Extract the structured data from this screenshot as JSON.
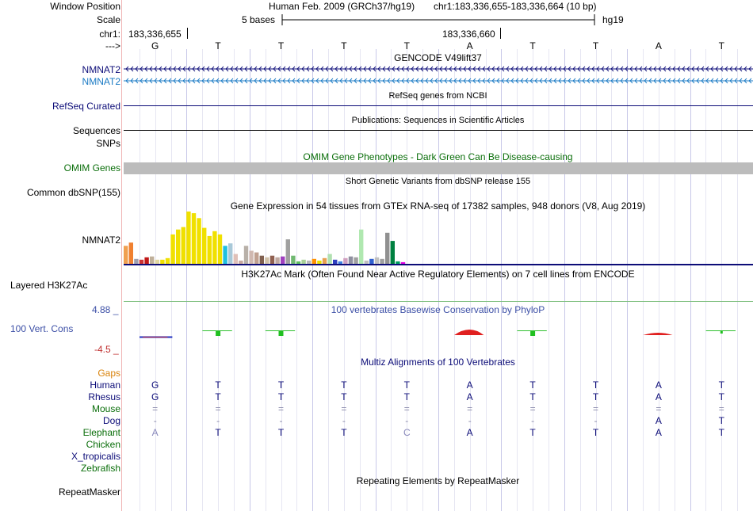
{
  "header": {
    "window_position_label": "Window Position",
    "scale_label": "Scale",
    "chrom_label": "chr1:",
    "strand_label": "--->",
    "assembly": "Human Feb. 2009 (GRCh37/hg19)",
    "position": "chr1:183,336,655-183,336,664 (10 bp)",
    "scale_text": "5 bases",
    "db": "hg19",
    "coord_left": "183,336,655",
    "coord_mid": "183,336,660",
    "bases": [
      "G",
      "T",
      "T",
      "T",
      "T",
      "A",
      "T",
      "T",
      "A",
      "T"
    ]
  },
  "tracks": {
    "gencode": {
      "title": "GENCODE V49lift37",
      "labels": [
        "NMNAT2",
        "NMNAT2"
      ]
    },
    "refseq": {
      "title": "RefSeq genes from NCBI",
      "label": "RefSeq Curated"
    },
    "publications": {
      "title": "Publications: Sequences in Scientific Articles",
      "label": "Sequences"
    },
    "snps": {
      "label": "SNPs"
    },
    "omim": {
      "title": "OMIM Gene Phenotypes - Dark Green Can Be Disease-causing",
      "label": "OMIM Genes"
    },
    "dbsnp": {
      "title": "Short Genetic Variants from dbSNP release 155",
      "label": "Common dbSNP(155)"
    },
    "gtex": {
      "title": "Gene Expression in 54 tissues from GTEx RNA-seq of 17382 samples, 948 donors (V8, Aug 2019)",
      "label": "NMNAT2"
    },
    "h3k27ac": {
      "title": "H3K27Ac Mark (Often Found Near Active Regulatory Elements) on 7 cell lines from ENCODE",
      "label": "Layered H3K27Ac"
    },
    "phylop": {
      "title": "100 vertebrates Basewise Conservation by PhyloP",
      "label": "100 Vert. Cons",
      "max": "4.88 _",
      "min": "-4.5 _"
    },
    "multiz": {
      "title": "Multiz Alignments of 100 Vertebrates",
      "gaps_label": "Gaps",
      "species": [
        {
          "name": "Human",
          "bases": [
            "G",
            "T",
            "T",
            "T",
            "T",
            "A",
            "T",
            "T",
            "A",
            "T"
          ]
        },
        {
          "name": "Rhesus",
          "bases": [
            "G",
            "T",
            "T",
            "T",
            "T",
            "A",
            "T",
            "T",
            "A",
            "T"
          ]
        },
        {
          "name": "Mouse",
          "bases": [
            "=",
            "=",
            "=",
            "=",
            "=",
            "=",
            "=",
            "=",
            "=",
            "="
          ]
        },
        {
          "name": "Dog",
          "bases": [
            "-",
            "-",
            "-",
            "-",
            "-",
            "-",
            "-",
            "-",
            "A",
            "T"
          ]
        },
        {
          "name": "Elephant",
          "bases": [
            "A",
            "T",
            "T",
            "T",
            "C",
            "A",
            "T",
            "T",
            "A",
            "T"
          ]
        },
        {
          "name": "Chicken",
          "bases": []
        },
        {
          "name": "X_tropicalis",
          "bases": []
        },
        {
          "name": "Zebrafish",
          "bases": []
        }
      ]
    },
    "repeatmasker": {
      "title": "Repeating Elements by RepeatMasker",
      "label": "RepeatMasker"
    }
  },
  "chart_data": {
    "type": "bar",
    "title": "Gene Expression in 54 tissues from GTEx RNA-seq of 17382 samples, 948 donors (V8, Aug 2019)",
    "xlabel": "",
    "ylabel": "",
    "ylim": [
      0,
      64
    ],
    "values": [
      22,
      26,
      6,
      5,
      8,
      9,
      5,
      5,
      7,
      36,
      42,
      45,
      64,
      62,
      56,
      44,
      34,
      40,
      36,
      22,
      25,
      12,
      4,
      22,
      16,
      14,
      10,
      8,
      10,
      8,
      9,
      30,
      10,
      3,
      5,
      4,
      6,
      4,
      7,
      12,
      5,
      3,
      7,
      9,
      8,
      42,
      4,
      6,
      8,
      6,
      38,
      28,
      3,
      2
    ],
    "colors": [
      "#f0a050",
      "#f08030",
      "#a0a0b0",
      "#cc3333",
      "#c01818",
      "#c0b09a",
      "#e0d6a0",
      "#f0e000",
      "#f0e000",
      "#f0e000",
      "#f0e000",
      "#f0e000",
      "#f0e000",
      "#f0e000",
      "#f0e000",
      "#f0e000",
      "#f0e000",
      "#f0e000",
      "#f0e000",
      "#20c0e0",
      "#a8c8d8",
      "#e0c0b8",
      "#c8a8a0",
      "#b8b0a8",
      "#d0b8b0",
      "#c0a090",
      "#806050",
      "#d0c0a8",
      "#906050",
      "#c0a8a0",
      "#a040c0",
      "#a0a0a0",
      "#70b870",
      "#60c060",
      "#a8d098",
      "#b8b8b8",
      "#ff9000",
      "#e8e000",
      "#e8a050",
      "#b0e0b0",
      "#3040c0",
      "#4080e0",
      "#d0a0c0",
      "#9090a0",
      "#a0a0a0",
      "#b0e8b0",
      "#c0c0c0",
      "#3060d0",
      "#c0c0c0",
      "#a0a0a0",
      "#909090",
      "#008040",
      "#00a060",
      "#e000e0"
    ]
  }
}
